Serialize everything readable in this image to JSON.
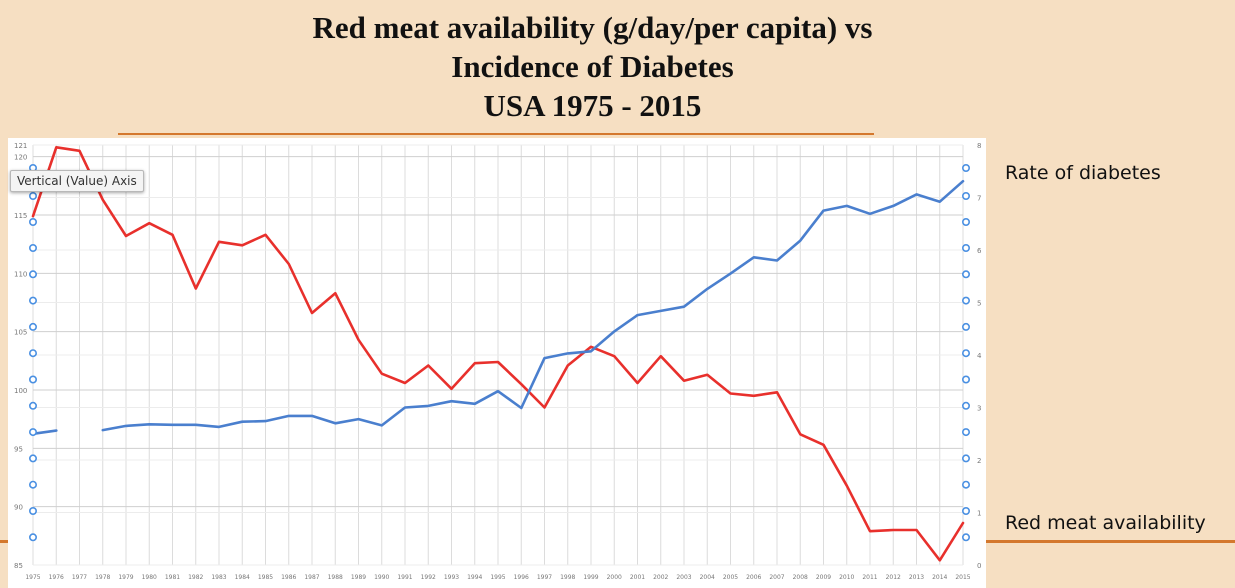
{
  "slide": {
    "title_lines": [
      "Red meat availability (g/day/per capita) vs",
      "Incidence of Diabetes",
      "USA 1975 - 2015"
    ],
    "label_rate": "Rate of diabetes",
    "label_meat": "Red meat availability",
    "tooltip": "Vertical (Value) Axis",
    "colors": {
      "meat": "#e8302c",
      "diabetes": "#4a7fce",
      "accent": "#d4782d",
      "handle": "#4a90e2"
    }
  },
  "chart_data": {
    "type": "line",
    "title": "",
    "xlabel": "",
    "ylabel": "",
    "x": [
      1975,
      1976,
      1977,
      1978,
      1979,
      1980,
      1981,
      1982,
      1983,
      1984,
      1985,
      1986,
      1987,
      1988,
      1989,
      1990,
      1991,
      1992,
      1993,
      1994,
      1995,
      1996,
      1997,
      1998,
      1999,
      2000,
      2001,
      2002,
      2003,
      2004,
      2005,
      2006,
      2007,
      2008,
      2009,
      2010,
      2011,
      2012,
      2013,
      2014,
      2015
    ],
    "x_tick_labels": [
      "1975",
      "1976",
      "1977",
      "1978",
      "1979",
      "1980",
      "1981",
      "1982",
      "1983",
      "1984",
      "1985",
      "1986",
      "1987",
      "1988",
      "1989",
      "1990",
      "1991",
      "1992",
      "1993",
      "1994",
      "1995",
      "1996",
      "1997",
      "1998",
      "1999",
      "2000",
      "2001",
      "2002",
      "2003",
      "2004",
      "2005",
      "2006",
      "2007",
      "2008",
      "2009",
      "2010",
      "2011",
      "2012",
      "2013",
      "2014",
      "2015"
    ],
    "y_left": {
      "min": 85,
      "max": 121,
      "ticks": [
        85,
        90,
        95,
        100,
        105,
        110,
        115,
        120,
        121
      ]
    },
    "y_right": {
      "min": 0,
      "max": 8,
      "ticks": [
        0,
        1,
        2,
        3,
        4,
        5,
        6,
        7,
        8
      ]
    },
    "grid": true,
    "series": [
      {
        "name": "Red meat availability",
        "axis": "left",
        "values": [
          114.9,
          120.8,
          120.5,
          116.3,
          113.2,
          114.3,
          113.3,
          108.7,
          112.7,
          112.4,
          113.3,
          110.8,
          106.6,
          108.3,
          104.3,
          101.4,
          100.6,
          102.1,
          100.1,
          102.3,
          102.4,
          100.5,
          98.5,
          102.1,
          103.7,
          102.9,
          100.6,
          102.9,
          100.8,
          101.3,
          99.7,
          99.5,
          99.8,
          96.2,
          95.3,
          91.8,
          87.9,
          88.0,
          88.0,
          85.4,
          88.6
        ]
      },
      {
        "name": "Rate of diabetes",
        "axis": "right",
        "values": [
          2.5,
          2.56,
          null,
          2.57,
          2.65,
          2.68,
          2.67,
          2.67,
          2.63,
          2.73,
          2.74,
          2.84,
          2.84,
          2.7,
          2.78,
          2.66,
          3.0,
          3.03,
          3.12,
          3.07,
          3.31,
          2.99,
          3.94,
          4.03,
          4.07,
          4.45,
          4.76,
          4.84,
          4.92,
          5.26,
          5.55,
          5.86,
          5.8,
          6.18,
          6.75,
          6.84,
          6.69,
          6.84,
          7.06,
          6.92,
          7.31
        ]
      }
    ]
  }
}
